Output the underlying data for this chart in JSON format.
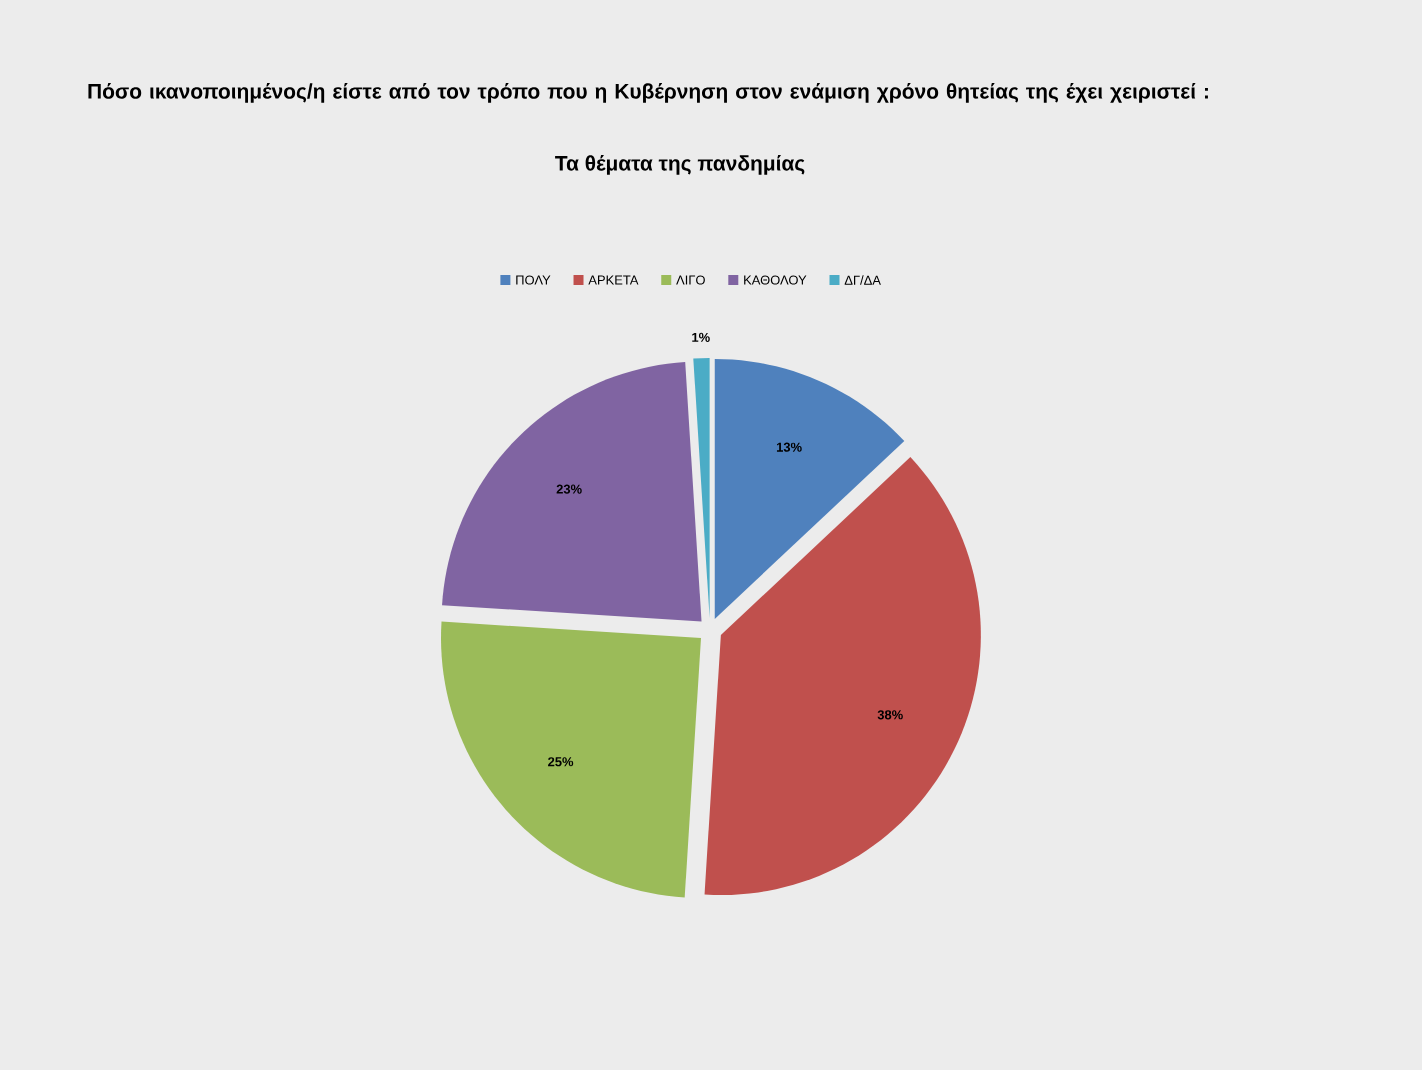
{
  "chart_data": {
    "type": "pie",
    "title": "Πόσο ικανοποιημένος/η είστε από τον τρόπο που η Κυβέρνηση στον ενάμιση χρόνο θητείας της έχει χειριστεί :",
    "subtitle": "Τα θέματα της πανδημίας",
    "categories": [
      "ΠΟΛΥ",
      "ΑΡΚΕΤΑ",
      "ΛΙΓΟ",
      "ΚΑΘΟΛΟΥ",
      "ΔΓ/ΔΑ"
    ],
    "values": [
      13,
      38,
      25,
      23,
      1
    ],
    "value_labels": [
      "13%",
      "38%",
      "25%",
      "23%",
      "1%"
    ],
    "colors": [
      "#4f81bd",
      "#c0504d",
      "#9bbb59",
      "#8064a2",
      "#4bacc6"
    ],
    "legend": "top"
  }
}
